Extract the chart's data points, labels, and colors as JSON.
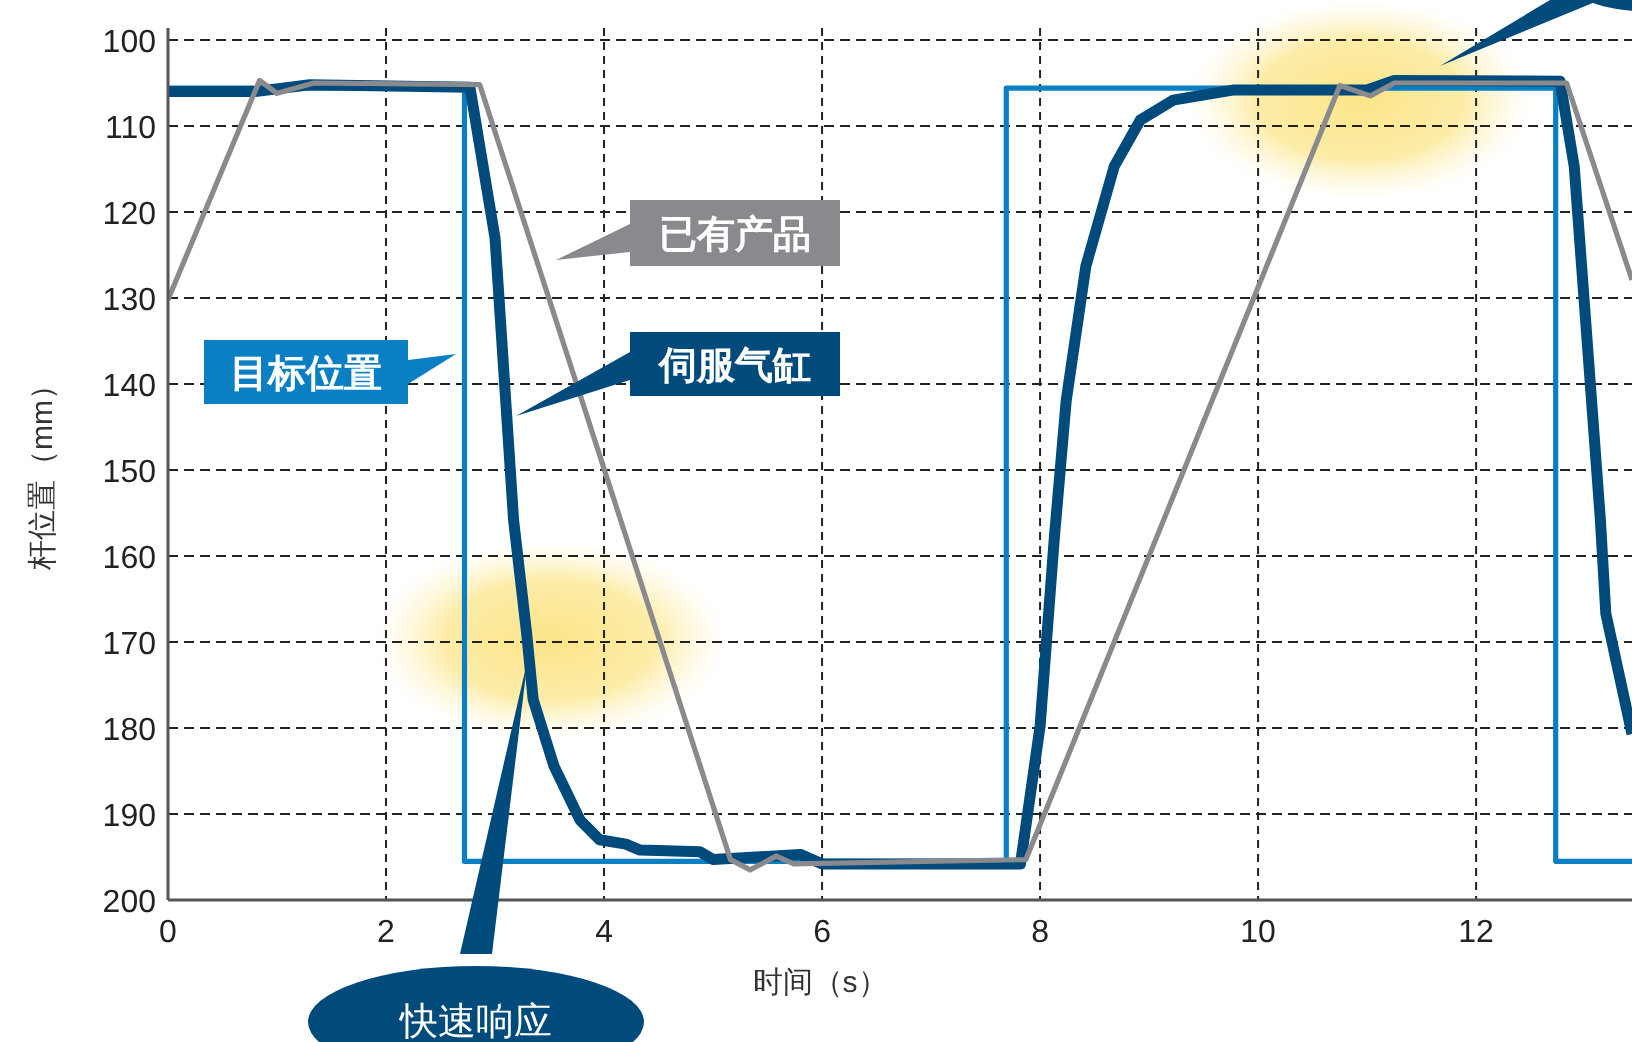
{
  "chart_data": {
    "type": "line",
    "xlabel": "时间（s）",
    "ylabel": "杆位置（mm）",
    "xlim": [
      0,
      13.43
    ],
    "ylim": [
      200,
      100
    ],
    "xticks": [
      0,
      2,
      4,
      6,
      8,
      10,
      12
    ],
    "yticks": [
      100,
      110,
      120,
      130,
      140,
      150,
      160,
      170,
      180,
      190,
      200
    ],
    "grid": true,
    "legend": "top left",
    "series": [
      {
        "name": "目标位置",
        "color": "#0a7fc4",
        "x": [
          0,
          2.72,
          2.72,
          7.69,
          7.69,
          12.73,
          12.73,
          13.43
        ],
        "values": [
          105.6,
          105.6,
          195.5,
          195.5,
          105.6,
          105.6,
          195.5,
          195.5
        ]
      },
      {
        "name": "伺服气缸",
        "color": "#004a7c",
        "x": [
          0,
          0.8,
          1.3,
          2.77,
          3.0,
          3.17,
          3.29,
          3.35,
          3.54,
          3.78,
          3.96,
          4.2,
          4.33,
          4.88,
          5.0,
          5.8,
          6.0,
          7.82,
          8.0,
          8.13,
          8.24,
          8.42,
          8.68,
          8.92,
          9.22,
          9.78,
          11.0,
          11.25,
          12.77,
          12.9,
          13.14,
          13.19,
          13.43
        ],
        "values": [
          106,
          106,
          105.2,
          105.5,
          123,
          155.8,
          169,
          176.7,
          184.4,
          190.7,
          193,
          193.5,
          194.2,
          194.4,
          195.3,
          194.7,
          195.8,
          195.8,
          179.8,
          158,
          141.9,
          126.3,
          114.7,
          109.3,
          107,
          105.8,
          105.8,
          104.7,
          104.8,
          114.7,
          155.8,
          166.7,
          180.7
        ]
      },
      {
        "name": "已有产品",
        "color": "#8a8a8e",
        "x": [
          0,
          0.84,
          1.0,
          1.34,
          2.86,
          5.16,
          5.34,
          5.58,
          5.74,
          7.87,
          10.75,
          11.03,
          11.25,
          12.83,
          13.43
        ],
        "values": [
          130.2,
          104.7,
          106.2,
          105,
          105.2,
          195.3,
          196.5,
          194.9,
          195.8,
          195.3,
          105.3,
          106.5,
          105,
          105,
          127.9
        ]
      }
    ],
    "annotations": [
      {
        "text": "快速响应",
        "x": 3.3,
        "y": 172
      }
    ]
  }
}
